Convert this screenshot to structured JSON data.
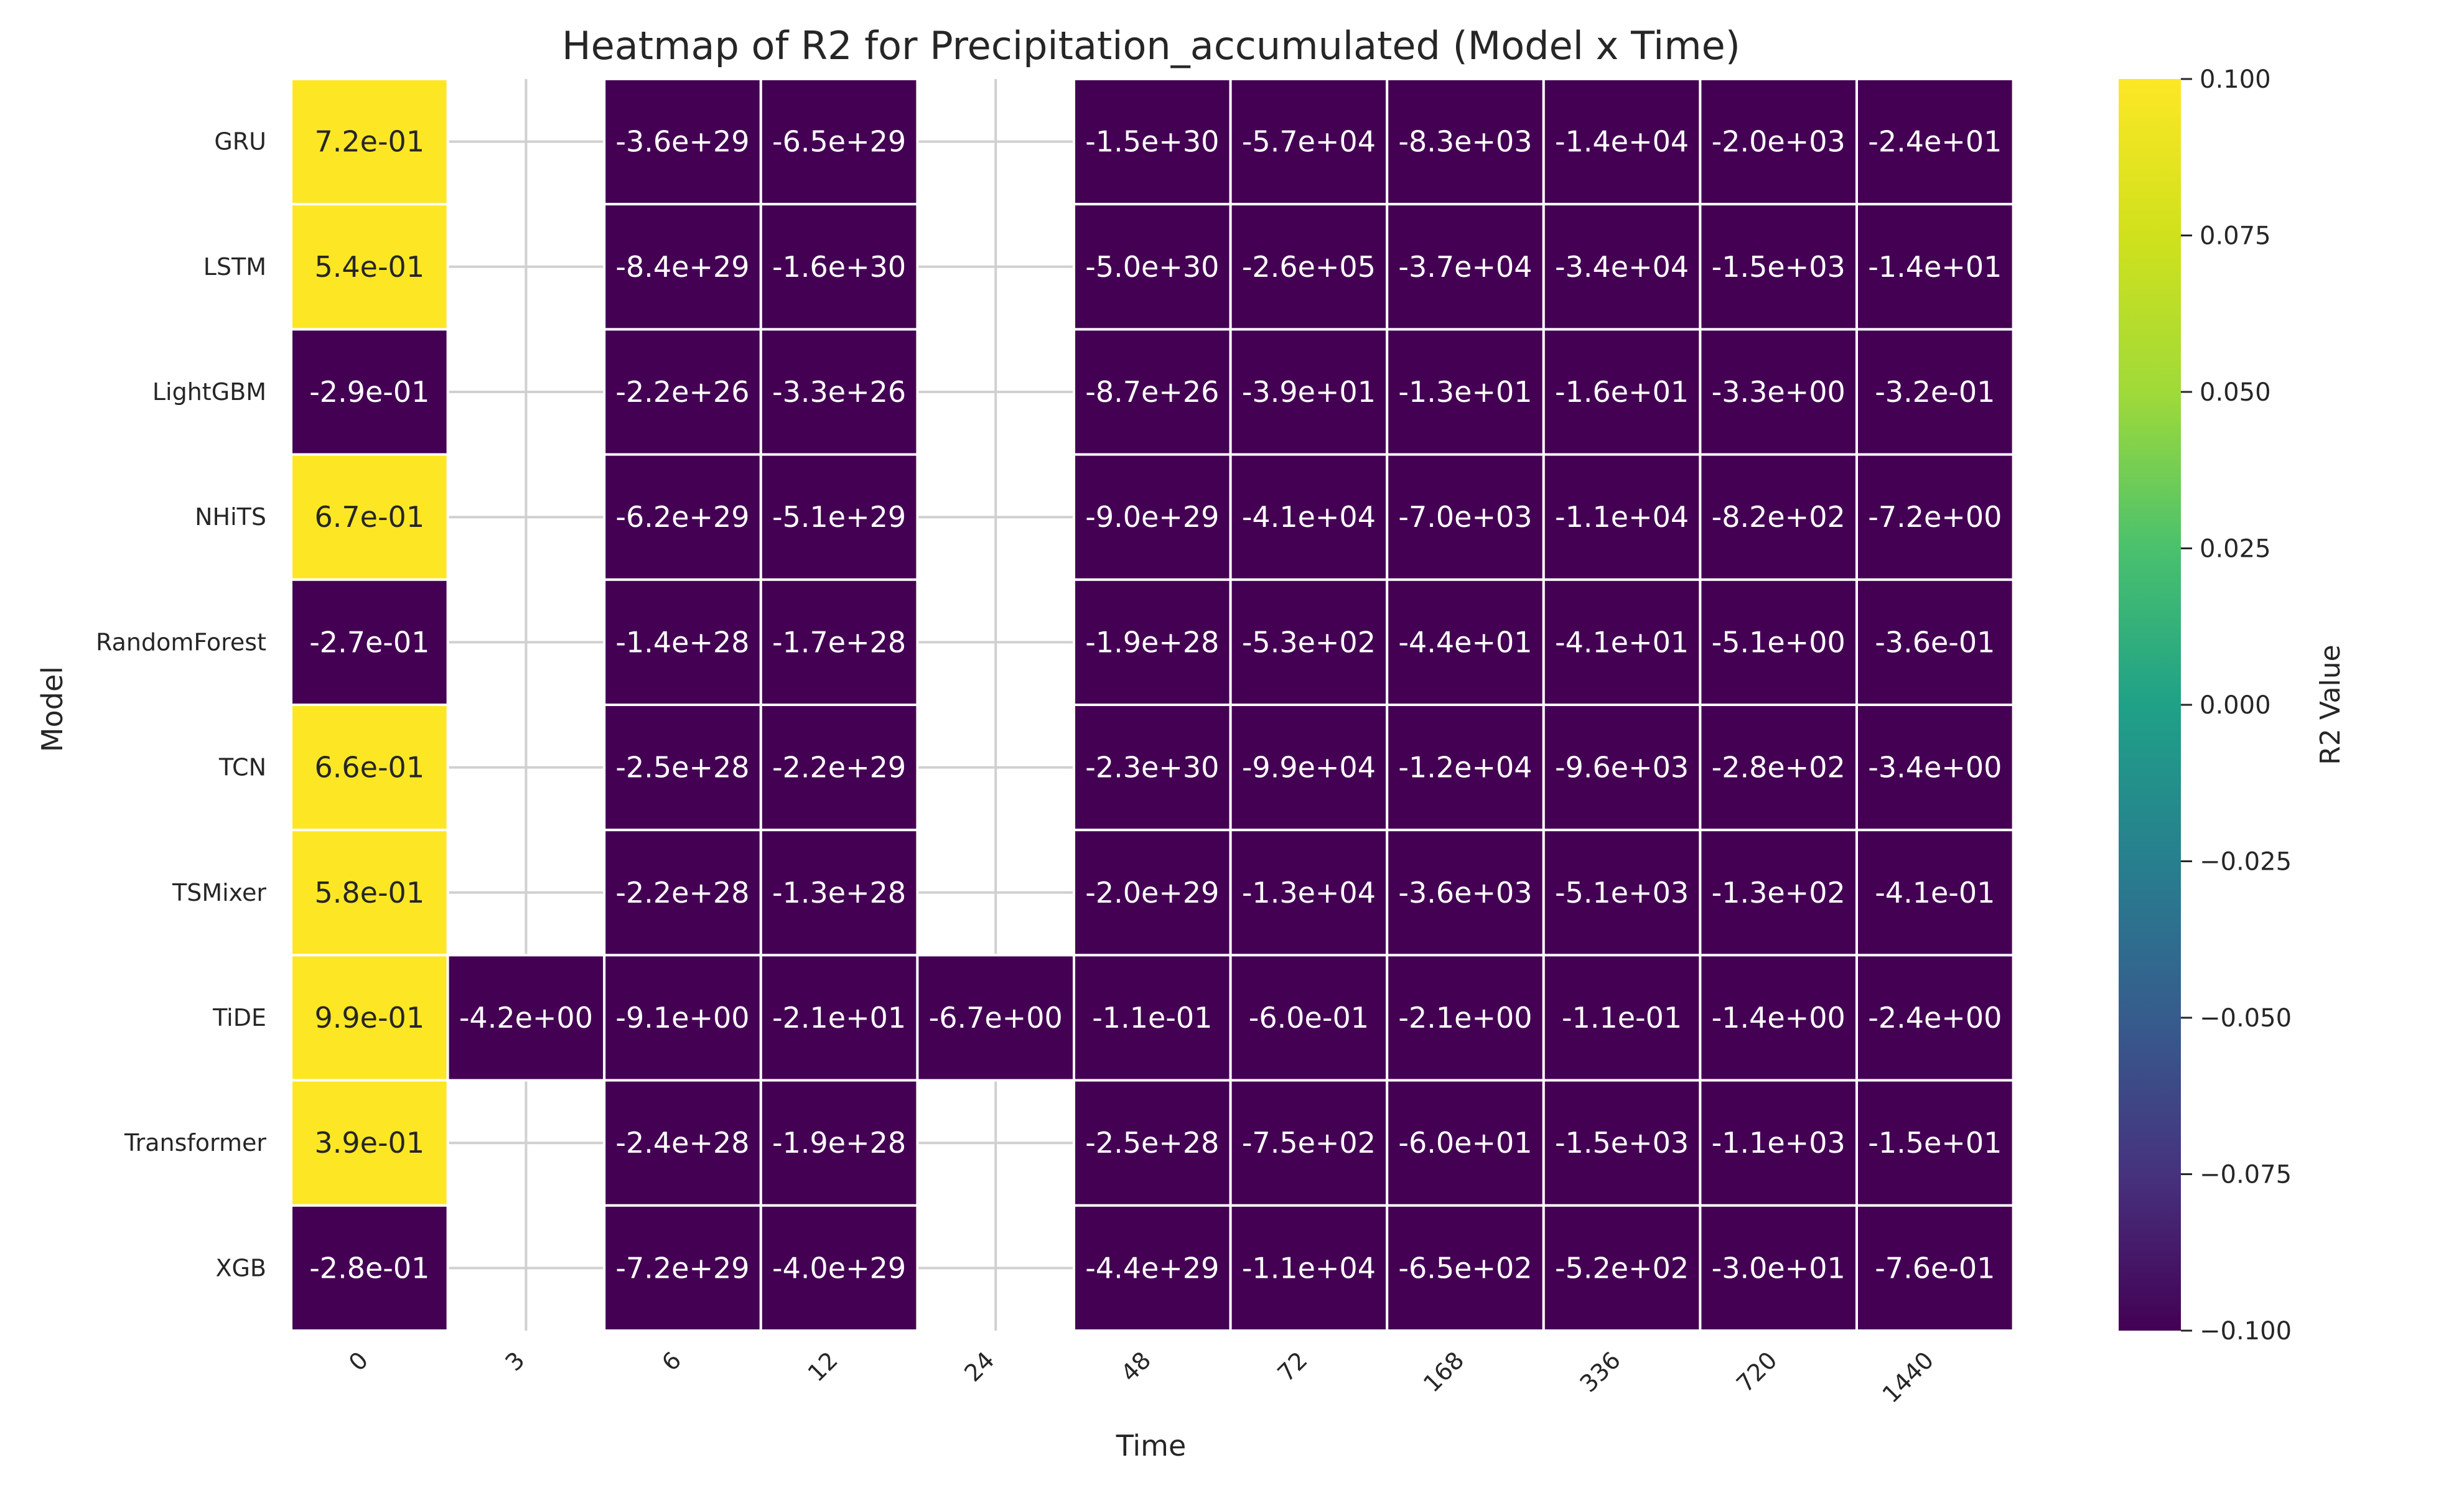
{
  "chart_data": {
    "type": "heatmap",
    "title": "Heatmap of R2 for Precipitation_accumulated (Model x Time)",
    "xlabel": "Time",
    "ylabel": "Model",
    "colorbar_label": "R2 Value",
    "colormap": "viridis",
    "vlim": [
      -0.1,
      0.1
    ],
    "colorbar_ticks": [
      "0.100",
      "0.075",
      "0.050",
      "0.025",
      "0.000",
      "−0.025",
      "−0.050",
      "−0.075",
      "−0.100"
    ],
    "x_categories": [
      "0",
      "3",
      "6",
      "12",
      "24",
      "48",
      "72",
      "168",
      "336",
      "720",
      "1440"
    ],
    "y_categories": [
      "GRU",
      "LSTM",
      "LightGBM",
      "NHiTS",
      "RandomForest",
      "TCN",
      "TSMixer",
      "TiDE",
      "Transformer",
      "XGB"
    ],
    "grid": true,
    "cells": [
      [
        {
          "v": 0.72,
          "label": "7.2e-01"
        },
        null,
        {
          "v": -3.6e+29,
          "label": "-3.6e+29"
        },
        {
          "v": -6.5e+29,
          "label": "-6.5e+29"
        },
        null,
        {
          "v": -1.5e+30,
          "label": "-1.5e+30"
        },
        {
          "v": -57000.0,
          "label": "-5.7e+04"
        },
        {
          "v": -8300.0,
          "label": "-8.3e+03"
        },
        {
          "v": -14000.0,
          "label": "-1.4e+04"
        },
        {
          "v": -2000.0,
          "label": "-2.0e+03"
        },
        {
          "v": -24.0,
          "label": "-2.4e+01"
        }
      ],
      [
        {
          "v": 0.54,
          "label": "5.4e-01"
        },
        null,
        {
          "v": -8.4e+29,
          "label": "-8.4e+29"
        },
        {
          "v": -1.6e+30,
          "label": "-1.6e+30"
        },
        null,
        {
          "v": -5e+30,
          "label": "-5.0e+30"
        },
        {
          "v": -260000.0,
          "label": "-2.6e+05"
        },
        {
          "v": -37000.0,
          "label": "-3.7e+04"
        },
        {
          "v": -34000.0,
          "label": "-3.4e+04"
        },
        {
          "v": -1500.0,
          "label": "-1.5e+03"
        },
        {
          "v": -14.0,
          "label": "-1.4e+01"
        }
      ],
      [
        {
          "v": -0.29,
          "label": "-2.9e-01"
        },
        null,
        {
          "v": -2.2e+26,
          "label": "-2.2e+26"
        },
        {
          "v": -3.3e+26,
          "label": "-3.3e+26"
        },
        null,
        {
          "v": -8.7e+26,
          "label": "-8.7e+26"
        },
        {
          "v": -39.0,
          "label": "-3.9e+01"
        },
        {
          "v": -13.0,
          "label": "-1.3e+01"
        },
        {
          "v": -16.0,
          "label": "-1.6e+01"
        },
        {
          "v": -3.3,
          "label": "-3.3e+00"
        },
        {
          "v": -0.32,
          "label": "-3.2e-01"
        }
      ],
      [
        {
          "v": 0.67,
          "label": "6.7e-01"
        },
        null,
        {
          "v": -6.2e+29,
          "label": "-6.2e+29"
        },
        {
          "v": -5.1e+29,
          "label": "-5.1e+29"
        },
        null,
        {
          "v": -9e+29,
          "label": "-9.0e+29"
        },
        {
          "v": -41000.0,
          "label": "-4.1e+04"
        },
        {
          "v": -7000.0,
          "label": "-7.0e+03"
        },
        {
          "v": -11000.0,
          "label": "-1.1e+04"
        },
        {
          "v": -820.0,
          "label": "-8.2e+02"
        },
        {
          "v": -7.2,
          "label": "-7.2e+00"
        }
      ],
      [
        {
          "v": -0.27,
          "label": "-2.7e-01"
        },
        null,
        {
          "v": -1.4e+28,
          "label": "-1.4e+28"
        },
        {
          "v": -1.7e+28,
          "label": "-1.7e+28"
        },
        null,
        {
          "v": -1.9e+28,
          "label": "-1.9e+28"
        },
        {
          "v": -530.0,
          "label": "-5.3e+02"
        },
        {
          "v": -44.0,
          "label": "-4.4e+01"
        },
        {
          "v": -41.0,
          "label": "-4.1e+01"
        },
        {
          "v": -5.1,
          "label": "-5.1e+00"
        },
        {
          "v": -0.36,
          "label": "-3.6e-01"
        }
      ],
      [
        {
          "v": 0.66,
          "label": "6.6e-01"
        },
        null,
        {
          "v": -2.5e+28,
          "label": "-2.5e+28"
        },
        {
          "v": -2.2e+29,
          "label": "-2.2e+29"
        },
        null,
        {
          "v": -2.3e+30,
          "label": "-2.3e+30"
        },
        {
          "v": -99000.0,
          "label": "-9.9e+04"
        },
        {
          "v": -12000.0,
          "label": "-1.2e+04"
        },
        {
          "v": -9600.0,
          "label": "-9.6e+03"
        },
        {
          "v": -280.0,
          "label": "-2.8e+02"
        },
        {
          "v": -3.4,
          "label": "-3.4e+00"
        }
      ],
      [
        {
          "v": 0.58,
          "label": "5.8e-01"
        },
        null,
        {
          "v": -2.2e+28,
          "label": "-2.2e+28"
        },
        {
          "v": -1.3e+28,
          "label": "-1.3e+28"
        },
        null,
        {
          "v": -2e+29,
          "label": "-2.0e+29"
        },
        {
          "v": -13000.0,
          "label": "-1.3e+04"
        },
        {
          "v": -3600.0,
          "label": "-3.6e+03"
        },
        {
          "v": -5100.0,
          "label": "-5.1e+03"
        },
        {
          "v": -130.0,
          "label": "-1.3e+02"
        },
        {
          "v": -0.41,
          "label": "-4.1e-01"
        }
      ],
      [
        {
          "v": 0.99,
          "label": "9.9e-01"
        },
        {
          "v": -4.2,
          "label": "-4.2e+00"
        },
        {
          "v": -9.1,
          "label": "-9.1e+00"
        },
        {
          "v": -21.0,
          "label": "-2.1e+01"
        },
        {
          "v": -6.7,
          "label": "-6.7e+00"
        },
        {
          "v": -0.11,
          "label": "-1.1e-01"
        },
        {
          "v": -0.6,
          "label": "-6.0e-01"
        },
        {
          "v": -2.1,
          "label": "-2.1e+00"
        },
        {
          "v": -0.11,
          "label": "-1.1e-01"
        },
        {
          "v": -1.4,
          "label": "-1.4e+00"
        },
        {
          "v": -2.4,
          "label": "-2.4e+00"
        }
      ],
      [
        {
          "v": 0.39,
          "label": "3.9e-01"
        },
        null,
        {
          "v": -2.4e+28,
          "label": "-2.4e+28"
        },
        {
          "v": -1.9e+28,
          "label": "-1.9e+28"
        },
        null,
        {
          "v": -2.5e+28,
          "label": "-2.5e+28"
        },
        {
          "v": -750.0,
          "label": "-7.5e+02"
        },
        {
          "v": -60.0,
          "label": "-6.0e+01"
        },
        {
          "v": -1500.0,
          "label": "-1.5e+03"
        },
        {
          "v": -1100.0,
          "label": "-1.1e+03"
        },
        {
          "v": -15.0,
          "label": "-1.5e+01"
        }
      ],
      [
        {
          "v": -0.28,
          "label": "-2.8e-01"
        },
        null,
        {
          "v": -7.2e+29,
          "label": "-7.2e+29"
        },
        {
          "v": -4e+29,
          "label": "-4.0e+29"
        },
        null,
        {
          "v": -4.4e+29,
          "label": "-4.4e+29"
        },
        {
          "v": -11000.0,
          "label": "-1.1e+04"
        },
        {
          "v": -650.0,
          "label": "-6.5e+02"
        },
        {
          "v": -520.0,
          "label": "-5.2e+02"
        },
        {
          "v": -30.0,
          "label": "-3.0e+01"
        },
        {
          "v": -0.76,
          "label": "-7.6e-01"
        }
      ]
    ]
  }
}
